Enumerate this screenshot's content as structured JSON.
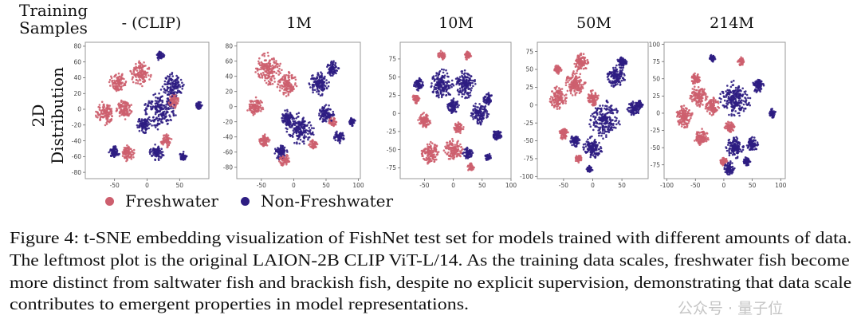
{
  "figure": {
    "row_header": {
      "line1": "Training",
      "line2": "Samples"
    },
    "col_header": {
      "line1": "2D",
      "line2": "Distribution"
    },
    "legend": [
      {
        "label": "Freshwater",
        "color": "#cd5f6e"
      },
      {
        "label": "Non-Freshwater",
        "color": "#2d1d82"
      }
    ],
    "caption_lines": [
      "Figure 4: t-SNE embedding visualization of FishNet test set for models trained with different amounts of data.",
      "The leftmost plot is the original LAION-2B CLIP ViT-L/14. As the training data scales, freshwater fish become",
      "more distinct from saltwater fish and brackish fish, despite no explicit supervision, demonstrating that data scale",
      "contributes to emergent properties in model representations."
    ],
    "watermark": "公众号 · 量子位"
  },
  "chart_data": [
    {
      "type": "scatter",
      "title": "- (CLIP)",
      "xlim": [
        -95,
        95
      ],
      "ylim": [
        -88,
        85
      ],
      "xticks": [
        -50,
        0,
        50
      ],
      "yticks": [
        80,
        60,
        40,
        20,
        0,
        -20,
        -40,
        -60,
        -80
      ],
      "clusters": [
        {
          "class": "Freshwater",
          "x": -65,
          "y": -5,
          "spread": 14
        },
        {
          "class": "Freshwater",
          "x": -45,
          "y": 35,
          "spread": 12
        },
        {
          "class": "Freshwater",
          "x": -10,
          "y": 45,
          "spread": 15
        },
        {
          "class": "Freshwater",
          "x": -35,
          "y": 0,
          "spread": 12
        },
        {
          "class": "Freshwater",
          "x": -30,
          "y": -55,
          "spread": 10
        },
        {
          "class": "Freshwater",
          "x": 30,
          "y": -40,
          "spread": 8
        },
        {
          "class": "Freshwater",
          "x": 40,
          "y": 10,
          "spread": 9
        },
        {
          "class": "Non-Freshwater",
          "x": 20,
          "y": 0,
          "spread": 24
        },
        {
          "class": "Non-Freshwater",
          "x": 40,
          "y": 30,
          "spread": 15
        },
        {
          "class": "Non-Freshwater",
          "x": 15,
          "y": -55,
          "spread": 10
        },
        {
          "class": "Non-Freshwater",
          "x": 20,
          "y": 68,
          "spread": 6
        },
        {
          "class": "Non-Freshwater",
          "x": -5,
          "y": -20,
          "spread": 10
        },
        {
          "class": "Non-Freshwater",
          "x": -50,
          "y": -55,
          "spread": 8
        },
        {
          "class": "Non-Freshwater",
          "x": 55,
          "y": -60,
          "spread": 6
        },
        {
          "class": "Non-Freshwater",
          "x": 80,
          "y": 5,
          "spread": 5
        }
      ]
    },
    {
      "type": "scatter",
      "title": "1M",
      "xlim": [
        -88,
        103
      ],
      "ylim": [
        -95,
        85
      ],
      "xticks": [
        -50,
        0,
        50,
        100
      ],
      "yticks": [
        80,
        60,
        40,
        20,
        0,
        -20,
        -40,
        -60,
        -80
      ],
      "clusters": [
        {
          "class": "Freshwater",
          "x": -40,
          "y": 50,
          "spread": 20
        },
        {
          "class": "Freshwater",
          "x": -60,
          "y": 0,
          "spread": 12
        },
        {
          "class": "Freshwater",
          "x": -10,
          "y": 30,
          "spread": 15
        },
        {
          "class": "Freshwater",
          "x": -45,
          "y": -45,
          "spread": 8
        },
        {
          "class": "Freshwater",
          "x": -15,
          "y": -70,
          "spread": 8
        },
        {
          "class": "Freshwater",
          "x": 30,
          "y": -50,
          "spread": 6
        },
        {
          "class": "Freshwater",
          "x": 60,
          "y": -20,
          "spread": 6
        },
        {
          "class": "Non-Freshwater",
          "x": 10,
          "y": -30,
          "spread": 20
        },
        {
          "class": "Non-Freshwater",
          "x": 40,
          "y": 30,
          "spread": 15
        },
        {
          "class": "Non-Freshwater",
          "x": 60,
          "y": 50,
          "spread": 10
        },
        {
          "class": "Non-Freshwater",
          "x": 50,
          "y": -10,
          "spread": 12
        },
        {
          "class": "Non-Freshwater",
          "x": -20,
          "y": -60,
          "spread": 10
        },
        {
          "class": "Non-Freshwater",
          "x": 90,
          "y": -20,
          "spread": 5
        },
        {
          "class": "Non-Freshwater",
          "x": -10,
          "y": -15,
          "spread": 10
        },
        {
          "class": "Non-Freshwater",
          "x": 70,
          "y": -40,
          "spread": 8
        }
      ]
    },
    {
      "type": "scatter",
      "title": "10M",
      "xlim": [
        -92,
        100
      ],
      "ylim": [
        -90,
        98
      ],
      "xticks": [
        -50,
        0,
        50,
        100
      ],
      "yticks": [
        75,
        50,
        25,
        0,
        -25,
        -50,
        -75
      ],
      "clusters": [
        {
          "class": "Freshwater",
          "x": -40,
          "y": -55,
          "spread": 15
        },
        {
          "class": "Freshwater",
          "x": 0,
          "y": -50,
          "spread": 15
        },
        {
          "class": "Freshwater",
          "x": -50,
          "y": -10,
          "spread": 10
        },
        {
          "class": "Freshwater",
          "x": -20,
          "y": 80,
          "spread": 6
        },
        {
          "class": "Freshwater",
          "x": 25,
          "y": 80,
          "spread": 6
        },
        {
          "class": "Freshwater",
          "x": -65,
          "y": 20,
          "spread": 6
        },
        {
          "class": "Freshwater",
          "x": 10,
          "y": -20,
          "spread": 8
        },
        {
          "class": "Freshwater",
          "x": 30,
          "y": -75,
          "spread": 6
        },
        {
          "class": "Non-Freshwater",
          "x": -20,
          "y": 40,
          "spread": 20
        },
        {
          "class": "Non-Freshwater",
          "x": 20,
          "y": 40,
          "spread": 18
        },
        {
          "class": "Non-Freshwater",
          "x": 45,
          "y": 0,
          "spread": 15
        },
        {
          "class": "Non-Freshwater",
          "x": 75,
          "y": -30,
          "spread": 8
        },
        {
          "class": "Non-Freshwater",
          "x": 60,
          "y": 20,
          "spread": 8
        },
        {
          "class": "Non-Freshwater",
          "x": -60,
          "y": 40,
          "spread": 8
        },
        {
          "class": "Non-Freshwater",
          "x": 0,
          "y": 10,
          "spread": 10
        },
        {
          "class": "Non-Freshwater",
          "x": 60,
          "y": -60,
          "spread": 5
        },
        {
          "class": "Non-Freshwater",
          "x": 25,
          "y": -55,
          "spread": 8
        }
      ]
    },
    {
      "type": "scatter",
      "title": "50M",
      "xlim": [
        -95,
        95
      ],
      "ylim": [
        -103,
        88
      ],
      "xticks": [
        -50,
        0,
        50
      ],
      "yticks": [
        75,
        50,
        25,
        0,
        -25,
        -50,
        -75,
        -100
      ],
      "clusters": [
        {
          "class": "Freshwater",
          "x": -60,
          "y": 10,
          "spread": 15
        },
        {
          "class": "Freshwater",
          "x": -30,
          "y": 30,
          "spread": 18
        },
        {
          "class": "Freshwater",
          "x": -20,
          "y": 60,
          "spread": 12
        },
        {
          "class": "Freshwater",
          "x": -50,
          "y": -40,
          "spread": 8
        },
        {
          "class": "Freshwater",
          "x": 0,
          "y": 10,
          "spread": 10
        },
        {
          "class": "Freshwater",
          "x": -60,
          "y": 50,
          "spread": 6
        },
        {
          "class": "Freshwater",
          "x": -25,
          "y": -75,
          "spread": 6
        },
        {
          "class": "Non-Freshwater",
          "x": 20,
          "y": -20,
          "spread": 25
        },
        {
          "class": "Non-Freshwater",
          "x": 40,
          "y": 40,
          "spread": 15
        },
        {
          "class": "Non-Freshwater",
          "x": 70,
          "y": -5,
          "spread": 10
        },
        {
          "class": "Non-Freshwater",
          "x": 0,
          "y": -60,
          "spread": 15
        },
        {
          "class": "Non-Freshwater",
          "x": 50,
          "y": 60,
          "spread": 8
        },
        {
          "class": "Non-Freshwater",
          "x": -30,
          "y": -50,
          "spread": 8
        },
        {
          "class": "Non-Freshwater",
          "x": -5,
          "y": -90,
          "spread": 5
        },
        {
          "class": "Non-Freshwater",
          "x": 80,
          "y": 0,
          "spread": 6
        }
      ]
    },
    {
      "type": "scatter",
      "title": "214M",
      "xlim": [
        -105,
        108
      ],
      "ylim": [
        -95,
        103
      ],
      "xticks": [
        -100,
        -50,
        0,
        50,
        100
      ],
      "yticks": [
        100,
        75,
        50,
        25,
        0,
        -25,
        -50,
        -75
      ],
      "clusters": [
        {
          "class": "Freshwater",
          "x": -70,
          "y": -5,
          "spread": 15
        },
        {
          "class": "Freshwater",
          "x": -45,
          "y": 25,
          "spread": 15
        },
        {
          "class": "Freshwater",
          "x": -40,
          "y": -35,
          "spread": 12
        },
        {
          "class": "Freshwater",
          "x": -20,
          "y": 10,
          "spread": 12
        },
        {
          "class": "Freshwater",
          "x": 30,
          "y": 75,
          "spread": 6
        },
        {
          "class": "Freshwater",
          "x": 0,
          "y": -70,
          "spread": 6
        },
        {
          "class": "Freshwater",
          "x": -50,
          "y": 50,
          "spread": 8
        },
        {
          "class": "Freshwater",
          "x": 10,
          "y": -20,
          "spread": 8
        },
        {
          "class": "Non-Freshwater",
          "x": 20,
          "y": 20,
          "spread": 25
        },
        {
          "class": "Non-Freshwater",
          "x": 20,
          "y": -50,
          "spread": 15
        },
        {
          "class": "Non-Freshwater",
          "x": 10,
          "y": -80,
          "spread": 10
        },
        {
          "class": "Non-Freshwater",
          "x": 50,
          "y": -45,
          "spread": 10
        },
        {
          "class": "Non-Freshwater",
          "x": 60,
          "y": 40,
          "spread": 10
        },
        {
          "class": "Non-Freshwater",
          "x": 85,
          "y": 0,
          "spread": 6
        },
        {
          "class": "Non-Freshwater",
          "x": 40,
          "y": -70,
          "spread": 6
        },
        {
          "class": "Non-Freshwater",
          "x": -20,
          "y": 80,
          "spread": 5
        }
      ]
    }
  ]
}
